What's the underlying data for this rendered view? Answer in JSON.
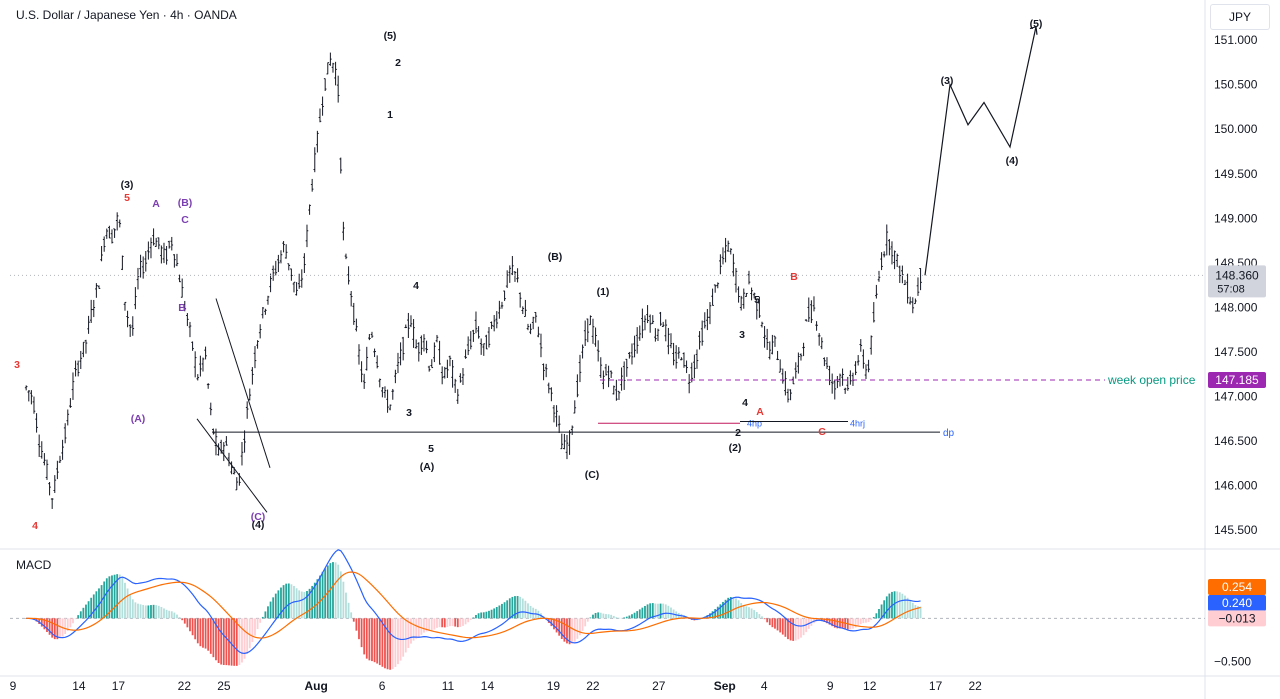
{
  "header": {
    "title": "U.S. Dollar / Japanese Yen · 4h · OANDA",
    "currency": "JPY"
  },
  "macd_panel": {
    "label": "MACD"
  },
  "colors": {
    "bar": "#131722",
    "macd_line": "#2962ff",
    "signal_line": "#ff6d00",
    "hist_pos_strong": "#26a69a",
    "hist_pos_weak": "#b2dfdb",
    "hist_neg_strong": "#ef5350",
    "hist_neg_weak": "#ffcdd2",
    "wave_red": "#e53935",
    "wave_purple": "#7b3fb0",
    "week_open": "#9c27b0",
    "dp_blue": "#2962ff"
  },
  "chart_data": [
    {
      "type": "ohlc",
      "name": "price",
      "ylim": [
        145.3,
        151.45
      ],
      "y_ticks": [
        145.5,
        146.0,
        146.5,
        147.0,
        147.5,
        148.0,
        148.5,
        149.0,
        149.5,
        150.0,
        150.5,
        151.0
      ],
      "y_tick_labels": [
        "145.500",
        "146.000",
        "146.500",
        "147.000",
        "147.500",
        "148.000",
        "148.500",
        "149.000",
        "149.500",
        "150.000",
        "150.500",
        "151.000"
      ],
      "x_ticks": [
        {
          "day": 9,
          "label": "9"
        },
        {
          "day": 14,
          "label": "14"
        },
        {
          "day": 17,
          "label": "17"
        },
        {
          "day": 22,
          "label": "22"
        },
        {
          "day": 25,
          "label": "25"
        },
        {
          "day": 32,
          "label": "Aug"
        },
        {
          "day": 37,
          "label": "6"
        },
        {
          "day": 42,
          "label": "11"
        },
        {
          "day": 45,
          "label": "14"
        },
        {
          "day": 50,
          "label": "19"
        },
        {
          "day": 53,
          "label": "22"
        },
        {
          "day": 58,
          "label": "27"
        },
        {
          "day": 63,
          "label": "Sep"
        },
        {
          "day": 66,
          "label": "4"
        },
        {
          "day": 71,
          "label": "9"
        },
        {
          "day": 74,
          "label": "12"
        },
        {
          "day": 79,
          "label": "17"
        },
        {
          "day": 82,
          "label": "22"
        }
      ],
      "x_tick_note": "day = days counted from Jul 1; only trading days shown on axis",
      "path_points": [
        [
          "2023-07-10",
          147.1
        ],
        [
          "2023-07-10",
          147.0
        ],
        [
          "2023-07-11",
          146.5
        ],
        [
          "2023-07-12",
          146.2
        ],
        [
          "2023-07-13",
          145.85
        ],
        [
          "2023-07-13",
          146.3
        ],
        [
          "2023-07-14",
          146.6
        ],
        [
          "2023-07-15",
          147.1
        ],
        [
          "2023-07-16",
          147.4
        ],
        [
          "2023-07-17",
          147.6
        ],
        [
          "2023-07-18",
          148.0
        ],
        [
          "2023-07-18",
          148.3
        ],
        [
          "2023-07-19",
          148.9
        ],
        [
          "2023-07-19",
          148.8
        ],
        [
          "2023-07-20",
          149.05
        ],
        [
          "2023-07-20",
          148.0
        ],
        [
          "2023-07-21",
          147.7
        ],
        [
          "2023-07-21",
          148.4
        ],
        [
          "2023-07-22",
          148.5
        ],
        [
          "2023-07-22",
          148.8
        ],
        [
          "2023-07-23",
          148.7
        ],
        [
          "2023-07-23",
          148.55
        ],
        [
          "2023-07-24",
          148.75
        ],
        [
          "2023-07-24",
          148.4
        ],
        [
          "2023-07-25",
          148.0
        ],
        [
          "2023-07-25",
          147.6
        ],
        [
          "2023-07-26",
          147.2
        ],
        [
          "2023-07-26",
          147.5
        ],
        [
          "2023-07-27",
          146.7
        ],
        [
          "2023-07-27",
          146.35
        ],
        [
          "2023-07-28",
          146.5
        ],
        [
          "2023-07-28",
          146.2
        ],
        [
          "2023-07-29",
          146.0
        ],
        [
          "2023-07-29",
          146.6
        ],
        [
          "2023-07-30",
          147.2
        ],
        [
          "2023-07-30",
          147.7
        ],
        [
          "2023-07-31",
          148.0
        ],
        [
          "2023-07-31",
          148.3
        ],
        [
          "2023-08-01",
          148.5
        ],
        [
          "2023-08-01",
          148.7
        ],
        [
          "2023-08-02",
          148.4
        ],
        [
          "2023-08-02",
          148.1
        ],
        [
          "2023-08-03",
          148.5
        ],
        [
          "2023-08-03",
          149.3
        ],
        [
          "2023-08-04",
          149.9
        ],
        [
          "2023-08-04",
          150.5
        ],
        [
          "2023-08-05",
          150.8
        ],
        [
          "2023-08-05",
          150.6
        ],
        [
          "2023-08-06",
          148.6
        ],
        [
          "2023-08-06",
          148.2
        ],
        [
          "2023-08-07",
          147.6
        ],
        [
          "2023-08-07",
          147.1
        ],
        [
          "2023-08-08",
          147.8
        ],
        [
          "2023-08-08",
          147.4
        ],
        [
          "2023-08-09",
          147.0
        ],
        [
          "2023-08-09",
          146.9
        ],
        [
          "2023-08-10",
          147.3
        ],
        [
          "2023-08-10",
          147.6
        ],
        [
          "2023-08-11",
          147.9
        ],
        [
          "2023-08-11",
          147.5
        ],
        [
          "2023-08-12",
          147.7
        ],
        [
          "2023-08-12",
          147.3
        ],
        [
          "2023-08-13",
          147.6
        ],
        [
          "2023-08-13",
          147.2
        ],
        [
          "2023-08-14",
          147.4
        ],
        [
          "2023-08-14",
          147.0
        ],
        [
          "2023-08-15",
          147.3
        ],
        [
          "2023-08-15",
          147.6
        ],
        [
          "2023-08-16",
          147.8
        ],
        [
          "2023-08-16",
          147.5
        ],
        [
          "2023-08-17",
          147.7
        ],
        [
          "2023-08-17",
          147.9
        ],
        [
          "2023-08-18",
          148.1
        ],
        [
          "2023-08-18",
          148.4
        ],
        [
          "2023-08-19",
          148.35
        ],
        [
          "2023-08-19",
          148.0
        ],
        [
          "2023-08-20",
          147.7
        ],
        [
          "2023-08-20",
          147.9
        ],
        [
          "2023-08-21",
          147.4
        ],
        [
          "2023-08-21",
          147.1
        ],
        [
          "2023-08-22",
          146.8
        ],
        [
          "2023-08-22",
          146.4
        ],
        [
          "2023-08-23",
          146.5
        ],
        [
          "2023-08-23",
          147.0
        ],
        [
          "2023-08-24",
          147.5
        ],
        [
          "2023-08-24",
          147.9
        ],
        [
          "2023-08-25",
          147.6
        ],
        [
          "2023-08-25",
          147.2
        ],
        [
          "2023-08-26",
          147.3
        ],
        [
          "2023-08-26",
          147.0
        ],
        [
          "2023-08-27",
          147.2
        ],
        [
          "2023-08-27",
          147.4
        ],
        [
          "2023-08-28",
          147.6
        ],
        [
          "2023-08-28",
          147.8
        ],
        [
          "2023-08-29",
          147.95
        ],
        [
          "2023-08-29",
          147.7
        ],
        [
          "2023-08-30",
          147.9
        ],
        [
          "2023-08-30",
          147.6
        ],
        [
          "2023-08-31",
          147.4
        ],
        [
          "2023-08-31",
          147.5
        ],
        [
          "2023-09-01",
          147.2
        ],
        [
          "2023-09-01",
          147.4
        ],
        [
          "2023-09-02",
          147.7
        ],
        [
          "2023-09-02",
          147.9
        ],
        [
          "2023-09-03",
          148.2
        ],
        [
          "2023-09-03",
          148.5
        ],
        [
          "2023-09-04",
          148.7
        ],
        [
          "2023-09-04",
          148.4
        ],
        [
          "2023-09-05",
          148.0
        ],
        [
          "2023-09-05",
          148.3
        ],
        [
          "2023-09-06",
          148.1
        ],
        [
          "2023-09-06",
          147.9
        ],
        [
          "2023-09-07",
          147.5
        ],
        [
          "2023-09-07",
          147.6
        ],
        [
          "2023-09-08",
          147.3
        ],
        [
          "2023-09-08",
          147.0
        ],
        [
          "2023-09-09",
          147.2
        ],
        [
          "2023-09-09",
          147.5
        ],
        [
          "2023-09-10",
          147.9
        ],
        [
          "2023-09-10",
          148.0
        ],
        [
          "2023-09-11",
          147.6
        ],
        [
          "2023-09-11",
          147.3
        ],
        [
          "2023-09-12",
          147.1
        ],
        [
          "2023-09-12",
          147.3
        ],
        [
          "2023-09-13",
          147.05
        ],
        [
          "2023-09-13",
          147.3
        ],
        [
          "2023-09-14",
          147.5
        ],
        [
          "2023-09-14",
          147.25
        ],
        [
          "2023-09-15",
          147.9
        ],
        [
          "2023-09-15",
          148.5
        ],
        [
          "2023-09-16",
          148.8
        ],
        [
          "2023-09-16",
          148.6
        ],
        [
          "2023-09-17",
          148.4
        ],
        [
          "2023-09-17",
          148.2
        ],
        [
          "2023-09-18",
          148.0
        ],
        [
          "2023-09-18",
          148.36
        ]
      ],
      "path_note": "Dense candle-like zigzag; drawn as thin OHLC ticks along this path",
      "projection": {
        "points": [
          [
            148.36,
            0
          ],
          [
            150.5,
            1
          ],
          [
            150.05,
            2
          ],
          [
            150.3,
            3
          ],
          [
            149.8,
            4
          ],
          [
            151.15,
            5
          ]
        ],
        "labels": [
          "(3)",
          "(4)",
          "(5)"
        ]
      },
      "horizontal_lines": [
        {
          "name": "week-open",
          "value": 147.185,
          "label": "week open price",
          "style": "dashed"
        },
        {
          "name": "dp",
          "value": 146.6,
          "label": "dp",
          "style": "solid"
        },
        {
          "name": "4hp",
          "value": 146.7,
          "label": "4hp",
          "style": "solid"
        },
        {
          "name": "4hrj",
          "value": 146.7,
          "label": "4hrj",
          "style": "solid"
        }
      ],
      "current_price": {
        "value": "148.360",
        "countdown": "57:08"
      },
      "week_open_badge": "147.185",
      "wave_labels": [
        {
          "text": "3",
          "color": "red"
        },
        {
          "text": "4",
          "color": "red"
        },
        {
          "text": "(3)",
          "color": "black"
        },
        {
          "text": "5",
          "color": "red"
        },
        {
          "text": "A",
          "color": "purple"
        },
        {
          "text": "(B)",
          "color": "purple"
        },
        {
          "text": "C",
          "color": "purple"
        },
        {
          "text": "B",
          "color": "purple"
        },
        {
          "text": "(A)",
          "color": "purple"
        },
        {
          "text": "(C)",
          "color": "purple"
        },
        {
          "text": "(4)",
          "color": "black"
        },
        {
          "text": "(5)",
          "color": "black"
        },
        {
          "text": "2",
          "color": "black"
        },
        {
          "text": "1",
          "color": "black"
        },
        {
          "text": "4",
          "color": "black"
        },
        {
          "text": "3",
          "color": "black"
        },
        {
          "text": "5",
          "color": "black"
        },
        {
          "text": "(A)",
          "color": "black"
        },
        {
          "text": "(B)",
          "color": "black"
        },
        {
          "text": "(C)",
          "color": "black"
        },
        {
          "text": "(1)",
          "color": "black"
        },
        {
          "text": "(2)",
          "color": "black"
        },
        {
          "text": "2",
          "color": "black"
        },
        {
          "text": "4",
          "color": "black"
        },
        {
          "text": "3",
          "color": "black"
        },
        {
          "text": "5",
          "color": "black"
        },
        {
          "text": "A",
          "color": "red"
        },
        {
          "text": "B",
          "color": "red"
        },
        {
          "text": "C",
          "color": "red"
        }
      ]
    },
    {
      "type": "macd",
      "name": "MACD",
      "ylim": [
        -0.62,
        0.72
      ],
      "y_ticks": [
        -0.5
      ],
      "y_tick_labels": [
        "−0.500"
      ],
      "zero_line_label": "−0.013",
      "macd_value": "0.254",
      "signal_value": "0.240"
    }
  ]
}
